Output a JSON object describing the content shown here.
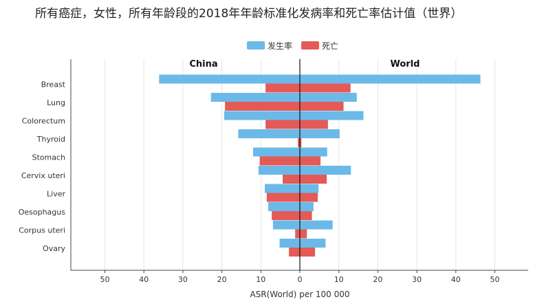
{
  "chart_data": {
    "type": "bar",
    "orientation": "horizontal-butterfly",
    "title": "所有癌症，女性，所有年龄段的2018年年龄标准化发病率和死亡率估计值（世界）",
    "xlabel": "ASR(World) per 100 000",
    "side_labels": {
      "left": "China",
      "right": "World"
    },
    "legend": {
      "position": "top-center",
      "items": [
        "发生率",
        "死亡"
      ]
    },
    "categories": [
      "Breast",
      "Lung",
      "Colorectum",
      "Thyroid",
      "Stomach",
      "Cervix uteri",
      "Liver",
      "Oesophagus",
      "Corpus uteri",
      "Ovary"
    ],
    "series": [
      {
        "name": "发生率",
        "color": "#6BB9E8",
        "china": [
          36.1,
          22.8,
          19.4,
          15.8,
          12.0,
          10.6,
          9.0,
          8.1,
          6.9,
          5.2
        ],
        "world": [
          46.3,
          14.6,
          16.3,
          10.2,
          7.0,
          13.1,
          4.8,
          3.5,
          8.4,
          6.6
        ]
      },
      {
        "name": "死亡",
        "color": "#E45A57",
        "china": [
          8.8,
          19.2,
          8.8,
          0.5,
          10.3,
          4.4,
          8.5,
          7.2,
          1.2,
          2.8
        ],
        "world": [
          13.0,
          11.2,
          7.2,
          0.4,
          5.3,
          6.9,
          4.6,
          3.1,
          1.8,
          3.9
        ]
      }
    ],
    "xticks": [
      50,
      40,
      30,
      20,
      10,
      0,
      10,
      20,
      30,
      40,
      50
    ],
    "xlim": [
      -57,
      57
    ],
    "grid": true
  }
}
